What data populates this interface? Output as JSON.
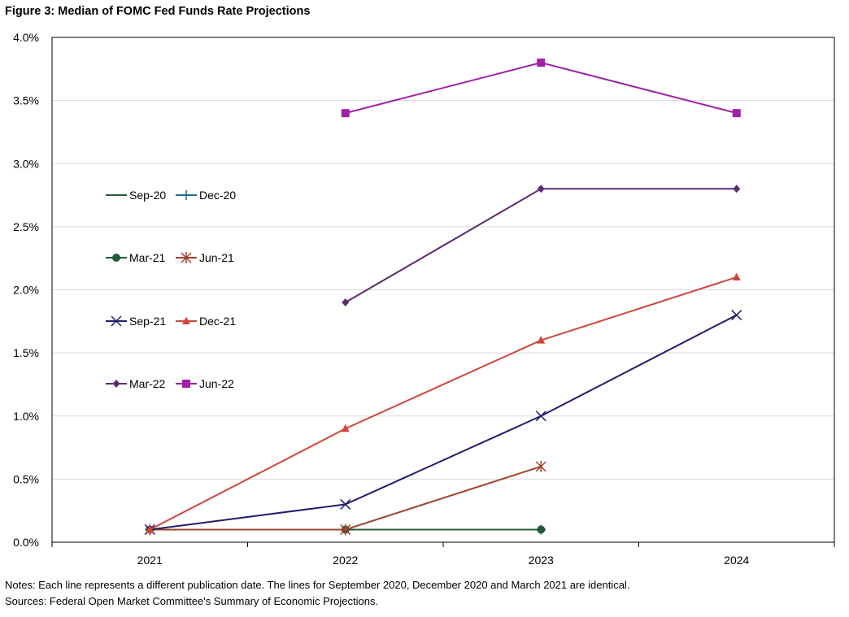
{
  "title": "Figure 3: Median of FOMC Fed Funds Rate Projections",
  "notes": "Notes: Each line represents a different publication date. The lines for September 2020, December 2020 and March 2021 are identical.",
  "sources": "Sources: Federal Open Market Committee's Summary of Economic Projections.",
  "chart_data": {
    "type": "line",
    "title": "Figure 3: Median of FOMC Fed Funds Rate Projections",
    "xlabel": "",
    "ylabel": "",
    "categories": [
      "2021",
      "2022",
      "2023",
      "2024"
    ],
    "ylim": [
      0,
      4.0
    ],
    "yticks": [
      0.0,
      0.5,
      1.0,
      1.5,
      2.0,
      2.5,
      3.0,
      3.5,
      4.0
    ],
    "ytick_labels": [
      "0.0%",
      "0.5%",
      "1.0%",
      "1.5%",
      "2.0%",
      "2.5%",
      "3.0%",
      "3.5%",
      "4.0%"
    ],
    "grid": "horizontal",
    "legend_position": "left",
    "series": [
      {
        "name": "Sep-20",
        "values": [
          0.1,
          0.1,
          0.1,
          null
        ],
        "color": "#2e5a3c",
        "marker": "none"
      },
      {
        "name": "Dec-20",
        "values": [
          0.1,
          0.1,
          0.1,
          null
        ],
        "color": "#1f6f8b",
        "marker": "plus"
      },
      {
        "name": "Mar-21",
        "values": [
          0.1,
          0.1,
          0.1,
          null
        ],
        "color": "#215c3a",
        "marker": "circle"
      },
      {
        "name": "Jun-21",
        "values": [
          0.1,
          0.1,
          0.6,
          null
        ],
        "color": "#a0432b",
        "marker": "asterisk"
      },
      {
        "name": "Sep-21",
        "values": [
          0.1,
          0.3,
          1.0,
          1.8
        ],
        "color": "#1f1d6e",
        "marker": "x"
      },
      {
        "name": "Dec-21",
        "values": [
          0.1,
          0.9,
          1.6,
          2.1
        ],
        "color": "#d0463c",
        "marker": "triangle"
      },
      {
        "name": "Mar-22",
        "values": [
          null,
          1.9,
          2.8,
          2.8
        ],
        "color": "#5b2c6f",
        "marker": "diamond"
      },
      {
        "name": "Jun-22",
        "values": [
          null,
          3.4,
          3.8,
          3.4
        ],
        "color": "#a020a8",
        "marker": "square"
      }
    ]
  }
}
